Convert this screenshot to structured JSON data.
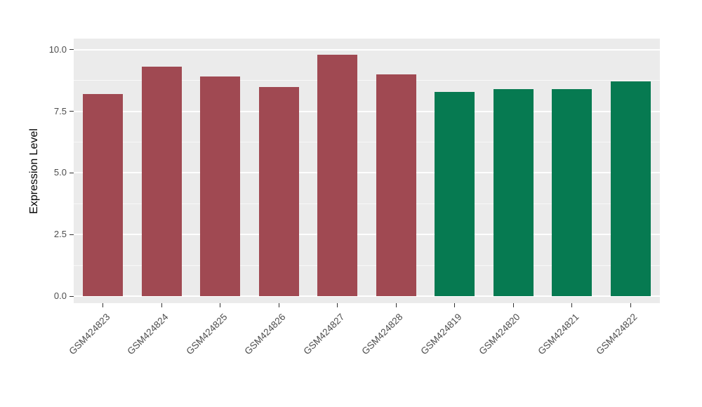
{
  "chart_data": {
    "type": "bar",
    "categories": [
      "GSM424823",
      "GSM424824",
      "GSM424825",
      "GSM424826",
      "GSM424827",
      "GSM424828",
      "GSM424819",
      "GSM424820",
      "GSM424821",
      "GSM424822"
    ],
    "values": [
      8.2,
      9.3,
      8.9,
      8.5,
      9.8,
      9.0,
      8.3,
      8.4,
      8.4,
      8.7
    ],
    "bar_colors": [
      "#A04952",
      "#A04952",
      "#A04952",
      "#A04952",
      "#A04952",
      "#A04952",
      "#067A51",
      "#067A51",
      "#067A51",
      "#067A51"
    ],
    "group_colors": {
      "group1": "#A04952",
      "group2": "#067A51"
    },
    "title": "",
    "xlabel": "",
    "ylabel": "Expression Level",
    "yticks": [
      0,
      2.5,
      5,
      7.5,
      10
    ],
    "ytick_labels": [
      "0.0",
      "2.5",
      "5.0",
      "7.5",
      "10.0"
    ],
    "ylim": [
      0,
      10
    ],
    "grid": "on",
    "legend": "none",
    "panel_background": "#EBEBEB",
    "grid_major_color": "#FFFFFF",
    "grid_minor_color": "#F7F7F7"
  }
}
